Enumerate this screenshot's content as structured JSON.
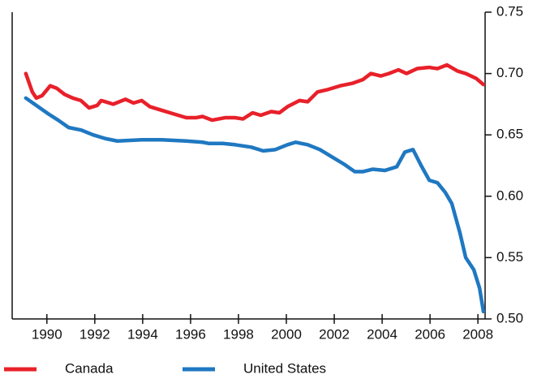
{
  "chart_data": {
    "type": "line",
    "xlim": [
      1988.55,
      2008.3
    ],
    "xticks": [
      1990,
      1992,
      1994,
      1996,
      1998,
      2000,
      2002,
      2004,
      2006,
      2008
    ],
    "ylim": [
      0.5,
      0.75
    ],
    "yticks": [
      {
        "value": 0.5,
        "label": "0.50"
      },
      0.55,
      {
        "value": 0.6,
        "label": "0.60"
      },
      0.65,
      {
        "value": 0.7,
        "label": "0.70"
      },
      0.75
    ],
    "y_axis_side": "right",
    "legend": "bottom",
    "series": [
      {
        "name": "Canada",
        "color": "#e8202a",
        "x": [
          1989.12,
          1989.39,
          1989.56,
          1989.8,
          1990.14,
          1990.41,
          1990.74,
          1991.08,
          1991.42,
          1991.76,
          1992.1,
          1992.27,
          1992.77,
          1993.28,
          1993.62,
          1993.96,
          1994.3,
          1994.8,
          1995.31,
          1995.82,
          1996.22,
          1996.5,
          1996.9,
          1997.44,
          1997.85,
          1998.19,
          1998.59,
          1998.93,
          1999.37,
          1999.71,
          2000.05,
          2000.55,
          2000.89,
          2001.3,
          2001.74,
          2002.25,
          2002.75,
          2003.19,
          2003.53,
          2003.94,
          2004.28,
          2004.68,
          2005.02,
          2005.46,
          2005.97,
          2006.31,
          2006.71,
          2007.15,
          2007.49,
          2007.93,
          2008.23
        ],
        "values": [
          0.7,
          0.685,
          0.68,
          0.682,
          0.69,
          0.688,
          0.683,
          0.68,
          0.678,
          0.672,
          0.674,
          0.678,
          0.675,
          0.679,
          0.676,
          0.678,
          0.673,
          0.67,
          0.667,
          0.664,
          0.664,
          0.665,
          0.662,
          0.664,
          0.664,
          0.663,
          0.668,
          0.666,
          0.669,
          0.668,
          0.673,
          0.678,
          0.677,
          0.685,
          0.687,
          0.69,
          0.692,
          0.695,
          0.7,
          0.698,
          0.7,
          0.703,
          0.7,
          0.704,
          0.705,
          0.704,
          0.707,
          0.702,
          0.7,
          0.696,
          0.691
        ]
      },
      {
        "name": "United States",
        "color": "#1f78c1",
        "x": [
          1989.12,
          1989.56,
          1990.07,
          1990.47,
          1990.91,
          1991.42,
          1991.93,
          1992.44,
          1992.94,
          1993.96,
          1994.8,
          1995.82,
          1996.5,
          1996.77,
          1997.34,
          1997.85,
          1998.53,
          1999.03,
          1999.54,
          2000.05,
          2000.39,
          2000.89,
          2001.4,
          2001.91,
          2002.42,
          2002.86,
          2003.19,
          2003.6,
          2004.11,
          2004.61,
          2004.95,
          2005.29,
          2005.63,
          2005.97,
          2006.31,
          2006.64,
          2006.91,
          2007.25,
          2007.49,
          2007.83,
          2008.07,
          2008.23
        ],
        "values": [
          0.68,
          0.674,
          0.667,
          0.662,
          0.656,
          0.654,
          0.65,
          0.647,
          0.645,
          0.646,
          0.646,
          0.645,
          0.644,
          0.643,
          0.643,
          0.642,
          0.64,
          0.637,
          0.638,
          0.642,
          0.644,
          0.642,
          0.638,
          0.632,
          0.626,
          0.62,
          0.62,
          0.622,
          0.621,
          0.624,
          0.636,
          0.638,
          0.625,
          0.613,
          0.611,
          0.603,
          0.594,
          0.57,
          0.55,
          0.54,
          0.525,
          0.506
        ]
      }
    ]
  }
}
